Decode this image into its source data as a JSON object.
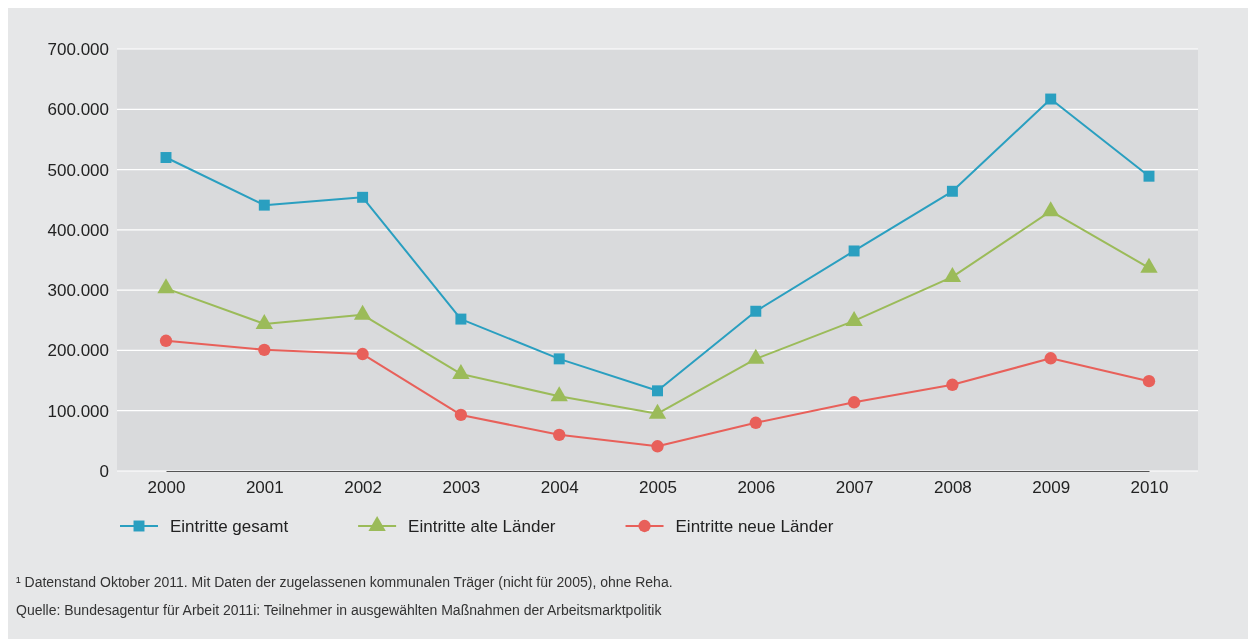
{
  "chart_data": {
    "type": "line",
    "categories": [
      "2000",
      "2001",
      "2002",
      "2003",
      "2004",
      "2005",
      "2006",
      "2007",
      "2008",
      "2009",
      "2010"
    ],
    "ylim": [
      0,
      700000
    ],
    "yticks": [
      {
        "value": 0,
        "label": "0"
      },
      {
        "value": 100000,
        "label": "100.000"
      },
      {
        "value": 200000,
        "label": "200.000"
      },
      {
        "value": 300000,
        "label": "300.000"
      },
      {
        "value": 400000,
        "label": "400.000"
      },
      {
        "value": 500000,
        "label": "500.000"
      },
      {
        "value": 600000,
        "label": "600.000"
      },
      {
        "value": 700000,
        "label": "700.000"
      }
    ],
    "grid": "y",
    "legend": "bottom left",
    "line_style": "solid",
    "series": [
      {
        "name": "Eintritte gesamt",
        "color": "#2a9fc0",
        "marker": "square",
        "values": [
          520000,
          441000,
          454000,
          252000,
          186000,
          133000,
          265000,
          365000,
          464000,
          617000,
          489000
        ]
      },
      {
        "name": "Eintritte alte Länder",
        "color": "#9bbb59",
        "marker": "triangle",
        "values": [
          303000,
          244000,
          259000,
          161000,
          124000,
          95000,
          186000,
          249000,
          322000,
          431000,
          337000
        ]
      },
      {
        "name": "Eintritte neue Länder",
        "color": "#e8605a",
        "marker": "circle",
        "values": [
          216000,
          201000,
          194000,
          93000,
          60000,
          41000,
          80000,
          114000,
          143000,
          187000,
          149000
        ]
      }
    ],
    "annotations": [
      "¹ Datenstand Oktober 2011. Mit Daten der zugelassenen kommunalen Träger (nicht für 2005), ohne Reha.",
      "Quelle: Bundesagentur für Arbeit 2011i: Teilnehmer in ausgewählten Maßnahmen der Arbeitsmarktpolitik"
    ]
  }
}
